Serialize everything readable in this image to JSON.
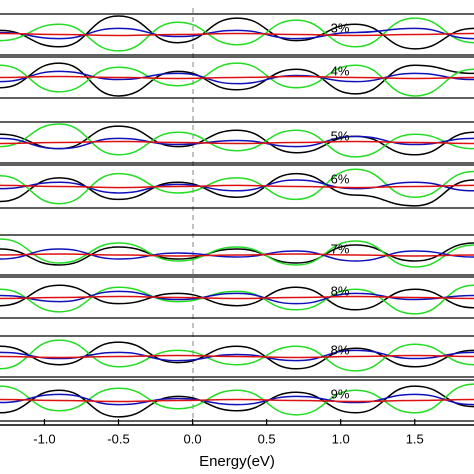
{
  "chart_data": {
    "type": "line",
    "xlabel": "Energy(eV)",
    "xlim": [
      -1.3,
      1.9
    ],
    "xticks": [
      {
        "value": -1,
        "label": "-1.0"
      },
      {
        "value": -0.5,
        "label": "-0.5"
      },
      {
        "value": 0,
        "label": "0.0"
      },
      {
        "value": 0.5,
        "label": "0.5"
      },
      {
        "value": 1,
        "label": "1.0"
      },
      {
        "value": 1.5,
        "label": "1.5"
      }
    ],
    "ylim": [
      -1,
      1
    ],
    "x": [
      -1.3,
      -0.9,
      -0.5,
      -0.1,
      0.3,
      0.7,
      1.1,
      1.5,
      1.9
    ],
    "panels": [
      {
        "label": "3%",
        "series": [
          {
            "color": "#000000",
            "values": [
              0.2,
              -0.6,
              0.9,
              -0.4,
              0.8,
              -0.3,
              0.5,
              -0.7,
              0.3
            ]
          },
          {
            "color": "#22dd22",
            "values": [
              -0.3,
              0.5,
              -0.8,
              0.6,
              -0.5,
              0.7,
              -0.6,
              0.8,
              -0.4
            ]
          },
          {
            "color": "#1010bb",
            "values": [
              0.1,
              -0.2,
              0.3,
              -0.1,
              0.2,
              -0.2,
              0.1,
              0.3,
              -0.2
            ]
          },
          {
            "color": "#dd1111",
            "values": [
              0.05,
              0.0,
              -0.05,
              0.0,
              0.05,
              0.0,
              -0.05,
              0.0,
              0.05
            ]
          }
        ]
      },
      {
        "label": "4%",
        "series": [
          {
            "color": "#000000",
            "values": [
              -0.5,
              0.7,
              -0.9,
              0.3,
              -0.6,
              0.4,
              -0.8,
              0.6,
              0.2
            ]
          },
          {
            "color": "#22dd22",
            "values": [
              0.6,
              -0.7,
              0.5,
              -0.4,
              0.7,
              -0.5,
              0.6,
              -0.9,
              0.4
            ]
          },
          {
            "color": "#1010bb",
            "values": [
              -0.2,
              0.3,
              -0.1,
              0.2,
              -0.3,
              0.1,
              -0.2,
              0.2,
              -0.1
            ]
          },
          {
            "color": "#dd1111",
            "values": [
              0.0,
              0.05,
              0.0,
              -0.05,
              0.0,
              0.05,
              0.0,
              -0.05,
              0.0
            ]
          }
        ]
      },
      {
        "label": "5%",
        "series": [
          {
            "color": "#000000",
            "values": [
              0.4,
              -0.3,
              0.8,
              -0.2,
              0.6,
              -0.5,
              0.3,
              -0.6,
              0.5
            ]
          },
          {
            "color": "#22dd22",
            "values": [
              -0.2,
              0.9,
              -0.6,
              0.5,
              -0.4,
              0.6,
              -0.7,
              0.4,
              -0.3
            ]
          },
          {
            "color": "#1010bb",
            "values": [
              0.2,
              -0.3,
              0.2,
              -0.1,
              0.1,
              -0.2,
              0.3,
              -0.1,
              0.2
            ]
          },
          {
            "color": "#dd1111",
            "values": [
              -0.05,
              0.0,
              0.05,
              0.0,
              -0.05,
              0.0,
              0.05,
              0.0,
              -0.05
            ]
          }
        ]
      },
      {
        "label": "6%",
        "series": [
          {
            "color": "#000000",
            "values": [
              -0.7,
              0.4,
              -0.6,
              0.2,
              -0.5,
              0.6,
              -0.4,
              -0.9,
              0.3
            ]
          },
          {
            "color": "#22dd22",
            "values": [
              0.5,
              -0.8,
              0.6,
              -0.3,
              0.4,
              -0.6,
              0.8,
              -0.5,
              0.7
            ]
          },
          {
            "color": "#1010bb",
            "values": [
              -0.1,
              0.2,
              -0.3,
              0.1,
              -0.2,
              0.3,
              -0.1,
              0.2,
              -0.2
            ]
          },
          {
            "color": "#dd1111",
            "values": [
              0.05,
              0.0,
              -0.05,
              0.0,
              0.05,
              0.0,
              -0.05,
              0.0,
              0.05
            ]
          }
        ]
      },
      {
        "label": "7%",
        "series": [
          {
            "color": "#000000",
            "values": [
              0.3,
              -0.5,
              0.4,
              -0.2,
              0.3,
              -0.4,
              0.5,
              -0.3,
              0.6
            ]
          },
          {
            "color": "#22dd22",
            "values": [
              0.8,
              -0.4,
              0.6,
              -0.3,
              0.4,
              -0.5,
              0.7,
              -0.6,
              0.5
            ]
          },
          {
            "color": "#1010bb",
            "values": [
              -0.2,
              0.3,
              -0.2,
              0.1,
              -0.1,
              0.2,
              -0.3,
              0.2,
              -0.1
            ]
          },
          {
            "color": "#dd1111",
            "values": [
              0.0,
              0.05,
              0.0,
              -0.05,
              0.0,
              0.05,
              0.0,
              -0.05,
              0.0
            ]
          }
        ]
      },
      {
        "label": "8%",
        "series": [
          {
            "color": "#000000",
            "values": [
              -0.4,
              0.6,
              -0.3,
              0.2,
              -0.4,
              0.5,
              -0.6,
              0.4,
              -0.5
            ]
          },
          {
            "color": "#22dd22",
            "values": [
              0.4,
              -0.7,
              0.5,
              -0.2,
              0.3,
              -0.6,
              0.4,
              -0.8,
              0.6
            ]
          },
          {
            "color": "#1010bb",
            "values": [
              0.1,
              -0.2,
              0.3,
              -0.1,
              0.2,
              -0.3,
              0.2,
              -0.1,
              0.1
            ]
          },
          {
            "color": "#dd1111",
            "values": [
              -0.05,
              0.0,
              0.05,
              0.0,
              -0.05,
              0.0,
              0.05,
              0.0,
              -0.05
            ]
          }
        ]
      },
      {
        "label": "8%",
        "series": [
          {
            "color": "#000000",
            "values": [
              0.5,
              -0.4,
              0.7,
              -0.3,
              0.5,
              -0.6,
              0.4,
              -0.5,
              0.3
            ]
          },
          {
            "color": "#22dd22",
            "values": [
              -0.6,
              0.8,
              -0.5,
              0.3,
              -0.4,
              0.5,
              -0.7,
              0.6,
              -0.4
            ]
          },
          {
            "color": "#1010bb",
            "values": [
              0.2,
              -0.1,
              0.2,
              -0.2,
              0.1,
              -0.2,
              0.3,
              -0.1,
              0.2
            ]
          },
          {
            "color": "#dd1111",
            "values": [
              0.0,
              -0.05,
              0.0,
              0.05,
              0.0,
              -0.05,
              0.0,
              0.05,
              0.0
            ]
          }
        ]
      },
      {
        "label": "9%",
        "series": [
          {
            "color": "#000000",
            "values": [
              -0.6,
              0.5,
              -0.8,
              0.2,
              -0.5,
              0.4,
              -0.6,
              0.7,
              -0.3
            ]
          },
          {
            "color": "#22dd22",
            "values": [
              0.7,
              -0.5,
              0.6,
              -0.4,
              0.5,
              -0.7,
              0.5,
              -0.6,
              0.8
            ]
          },
          {
            "color": "#1010bb",
            "values": [
              -0.1,
              0.3,
              -0.2,
              0.1,
              -0.2,
              0.2,
              -0.1,
              0.3,
              -0.2
            ]
          },
          {
            "color": "#dd1111",
            "values": [
              0.05,
              0.0,
              -0.05,
              0.0,
              0.05,
              0.0,
              -0.05,
              0.0,
              0.05
            ]
          }
        ]
      }
    ]
  }
}
